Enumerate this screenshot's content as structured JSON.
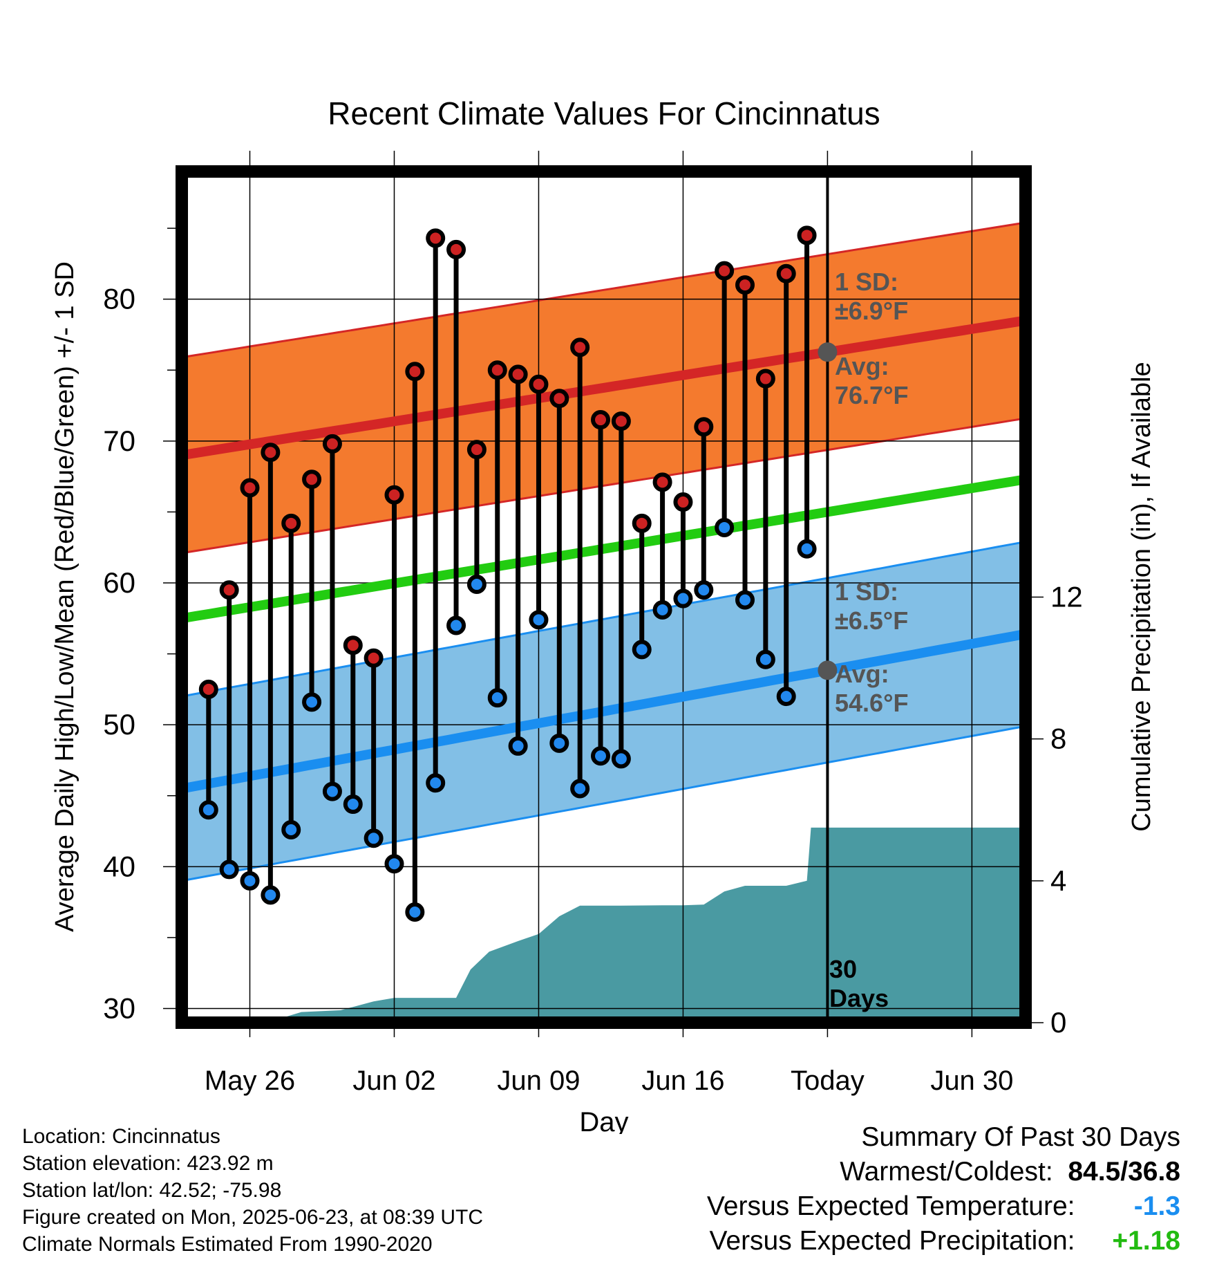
{
  "chart_data": {
    "type": "line",
    "title": "Recent Climate Values For Cincinnatus",
    "xlabel": "Day",
    "ylabel": "Average Daily High/Low/Mean (Red/Blue/Green) +/- 1 SD",
    "y2label": "Cumulative Precipitation (in), If Available",
    "x_tick_labels": [
      "May 26",
      "Jun 02",
      "Jun 09",
      "Jun 16",
      "Today",
      "Jun 30"
    ],
    "y_ticks": [
      30,
      40,
      50,
      60,
      70,
      80
    ],
    "y2_ticks": [
      0,
      4,
      8,
      12
    ],
    "ylim": [
      29,
      89
    ],
    "y2lim": [
      0,
      24
    ],
    "x_range_days": [
      -31.3,
      9.6
    ],
    "colors": {
      "high_band": "#f47a2e",
      "high_line": "#d42626",
      "low_band": "#82bfe6",
      "low_line": "#1a8ef0",
      "mean_line": "#22cc11",
      "precip": "#4a9aa2",
      "high_dot": "#cc2222",
      "low_dot": "#2288ee",
      "positive": "#22bb11",
      "negative": "#1a8ef0",
      "annotation": "#555555"
    },
    "normals": {
      "high_mean": {
        "start": 69.0,
        "end": 78.5
      },
      "high_sd": 6.9,
      "low_mean": {
        "start": 45.5,
        "end": 56.4
      },
      "low_sd": 6.5,
      "mean": {
        "start": 57.5,
        "end": 67.3
      }
    },
    "observations": {
      "day_offsets": [
        -30,
        -29,
        -28,
        -27,
        -26,
        -25,
        -24,
        -23,
        -22,
        -21,
        -20,
        -19,
        -18,
        -17,
        -16,
        -15,
        -14,
        -13,
        -12,
        -11,
        -10,
        -9,
        -8,
        -7,
        -6,
        -5,
        -4,
        -3,
        -2,
        -1
      ],
      "highs": [
        52.5,
        59.5,
        66.7,
        69.2,
        64.2,
        67.3,
        69.8,
        55.6,
        54.7,
        66.2,
        74.9,
        84.3,
        83.5,
        69.4,
        75.0,
        74.7,
        74.0,
        73.0,
        76.6,
        71.5,
        71.4,
        64.2,
        67.1,
        65.7,
        71.0,
        82.0,
        81.0,
        74.4,
        81.8,
        84.5
      ],
      "lows": [
        44.0,
        39.8,
        39.0,
        38.0,
        42.6,
        51.6,
        45.3,
        44.4,
        42.0,
        40.2,
        36.8,
        45.9,
        57.0,
        59.9,
        51.9,
        48.5,
        57.4,
        48.7,
        45.5,
        47.8,
        47.6,
        55.3,
        58.1,
        58.9,
        59.5,
        63.9,
        58.8,
        54.6,
        52.0,
        62.4
      ]
    },
    "precip_cumulative": {
      "day_offsets": [
        -31.3,
        -27.2,
        -25.5,
        -23.6,
        -22.0,
        -21.0,
        -20.0,
        -19.0,
        -18.0,
        -17.3,
        -16.4,
        -15.0,
        -14.0,
        -13.0,
        -12.0,
        -11.0,
        -10.0,
        -8.0,
        -7.0,
        -6.0,
        -5.0,
        -4.0,
        -3.0,
        -2.0,
        -1.0,
        -0.8,
        9.6
      ],
      "values": [
        0.0,
        0.0,
        0.3,
        0.35,
        0.6,
        0.7,
        0.7,
        0.7,
        0.7,
        1.5,
        2.0,
        2.3,
        2.5,
        3.0,
        3.3,
        3.3,
        3.3,
        3.31,
        3.31,
        3.33,
        3.7,
        3.86,
        3.86,
        3.86,
        4.0,
        5.5,
        5.5
      ]
    },
    "annotations": {
      "high_sd_label": "1 SD:",
      "high_sd_value": "±6.9°F",
      "high_avg_label": "Avg:",
      "high_avg_value": "76.7°F",
      "low_sd_label": "1 SD:",
      "low_sd_value": "±6.5°F",
      "low_avg_label": "Avg:",
      "low_avg_value": "54.6°F",
      "days_label_1": "30",
      "days_label_2": "Days"
    },
    "grid": true,
    "legend": "none"
  },
  "info": {
    "location": "Location: Cincinnatus",
    "elevation": "Station elevation: 423.92 m",
    "latlon": "Station lat/lon: 42.52; -75.98",
    "created": "Figure created on Mon, 2025-06-23, at 08:39 UTC",
    "normals": "Climate Normals Estimated From 1990-2020"
  },
  "summary": {
    "title": "Summary Of Past 30 Days",
    "warm_label": "Warmest/Coldest:",
    "warm_value": "84.5/36.8",
    "temp_label": "Versus Expected Temperature:",
    "temp_value": "-1.3",
    "precip_label": "Versus Expected Precipitation:",
    "precip_value": "+1.18"
  }
}
